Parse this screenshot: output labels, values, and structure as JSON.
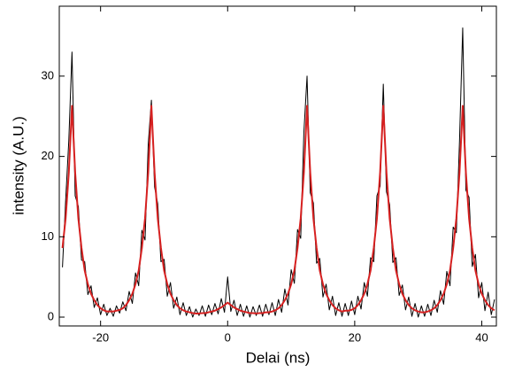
{
  "chart_data": {
    "type": "line",
    "x_label": "Delai (ns)",
    "y_label": "intensity (A.U.)",
    "xlim": [
      -26.5,
      42.3
    ],
    "ylim": [
      -1.1,
      38.7
    ],
    "xticks": [
      -20,
      0,
      20,
      40
    ],
    "yticks": [
      0,
      10,
      20,
      30
    ],
    "x": [
      -26,
      -25.5,
      -25,
      -24.5,
      -24,
      -23.5,
      -23,
      -22.5,
      -22,
      -21.5,
      -21,
      -20.5,
      -20,
      -19.5,
      -19,
      -18.5,
      -18,
      -17.5,
      -17,
      -16.5,
      -16,
      -15.5,
      -15,
      -14.5,
      -14,
      -13.5,
      -13,
      -12.5,
      -12,
      -11.5,
      -11,
      -10.5,
      -10,
      -9.5,
      -9,
      -8.5,
      -8,
      -7.5,
      -7,
      -6.5,
      -6,
      -5.5,
      -5,
      -4.5,
      -4,
      -3.5,
      -3,
      -2.5,
      -2,
      -1.5,
      -1,
      -0.5,
      0,
      0.5,
      1,
      1.5,
      2,
      2.5,
      3,
      3.5,
      4,
      4.5,
      5,
      5.5,
      6,
      6.5,
      7,
      7.5,
      8,
      8.5,
      9,
      9.5,
      10,
      10.5,
      11,
      11.5,
      12,
      12.5,
      13,
      13.5,
      14,
      14.5,
      15,
      15.5,
      16,
      16.5,
      17,
      17.5,
      18,
      18.5,
      19,
      19.5,
      20,
      20.5,
      21,
      21.5,
      22,
      22.5,
      23,
      23.5,
      24,
      24.5,
      25,
      25.5,
      26,
      26.5,
      27,
      27.5,
      28,
      28.5,
      29,
      29.5,
      30,
      30.5,
      31,
      31.5,
      32,
      32.5,
      33,
      33.5,
      34,
      34.5,
      35,
      35.5,
      36,
      36.5,
      37,
      37.5,
      38,
      38.5,
      39,
      39.5,
      40,
      40.5,
      41,
      41.5,
      42
    ],
    "series": [
      {
        "color": "#000000",
        "width": 1,
        "values": [
          6.2,
          14.5,
          22,
          33,
          15.1,
          13.8,
          7.1,
          6.9,
          2.8,
          3.9,
          1.2,
          2.4,
          0.3,
          1.6,
          0.2,
          1.1,
          0.1,
          1.4,
          0.5,
          1.9,
          0.8,
          3.2,
          1.7,
          5.5,
          3.9,
          10.8,
          9.6,
          21.5,
          27,
          16.2,
          14.1,
          6.9,
          7.2,
          2.6,
          4.3,
          1.1,
          2.5,
          0.3,
          1.8,
          0.2,
          1.3,
          0,
          1.0,
          0.2,
          1.4,
          0.1,
          1.5,
          0.3,
          1.7,
          0.4,
          2.3,
          0.6,
          5,
          0.7,
          2.1,
          0.2,
          1.6,
          0.1,
          1.4,
          0,
          1.3,
          0.2,
          1.5,
          0.1,
          1.6,
          0.3,
          1.8,
          0.2,
          2.2,
          0.6,
          3.5,
          1.5,
          5.9,
          4.2,
          10.9,
          9.8,
          23,
          30,
          15.5,
          14.2,
          6.7,
          7.3,
          2.5,
          4.1,
          0.9,
          2.6,
          0.2,
          1.8,
          0.1,
          1.7,
          0.2,
          2.0,
          0.3,
          2.6,
          1.0,
          4.3,
          2.6,
          7.4,
          6.9,
          15.1,
          16.3,
          29,
          15.6,
          14.0,
          6.8,
          7.4,
          2.7,
          4.0,
          0.9,
          2.5,
          0.1,
          1.7,
          0,
          1.4,
          0.1,
          1.6,
          0.2,
          2.1,
          0.6,
          3.3,
          1.6,
          5.7,
          3.9,
          11.2,
          10.5,
          22,
          36,
          15.8,
          14.9,
          6.3,
          7.8,
          2.4,
          4.3,
          0.8,
          3.1,
          0.3,
          2.2
        ]
      },
      {
        "color": "#d62020",
        "width": 2,
        "values": [
          8.6,
          12.3,
          18,
          26.3,
          18,
          12.3,
          8.6,
          5.8,
          4.1,
          2.9,
          2.1,
          1.5,
          1.1,
          0.85,
          0.7,
          0.7,
          0.7,
          0.8,
          0.9,
          1.1,
          1.5,
          2.1,
          2.9,
          4.1,
          5.8,
          8.6,
          12.3,
          18,
          26.3,
          18,
          12.3,
          8.6,
          5.8,
          4.1,
          2.9,
          2.1,
          1.5,
          1.1,
          0.85,
          0.7,
          0.6,
          0.5,
          0.45,
          0.45,
          0.5,
          0.5,
          0.6,
          0.7,
          0.8,
          1.0,
          1.2,
          1.5,
          1.8,
          1.5,
          1.2,
          1.0,
          0.8,
          0.7,
          0.6,
          0.5,
          0.5,
          0.45,
          0.5,
          0.5,
          0.6,
          0.6,
          0.7,
          0.85,
          1.1,
          1.5,
          2.1,
          2.9,
          4.1,
          5.8,
          8.6,
          12.3,
          18,
          26.3,
          18,
          12.3,
          8.6,
          5.8,
          4.1,
          2.9,
          2.1,
          1.5,
          1.1,
          0.85,
          0.7,
          0.8,
          0.8,
          0.9,
          1.1,
          1.5,
          2.1,
          2.9,
          4.1,
          5.8,
          8.6,
          12.3,
          18,
          26.3,
          18,
          12.3,
          8.6,
          5.8,
          4.1,
          2.9,
          2.1,
          1.5,
          1.1,
          0.85,
          0.7,
          0.6,
          0.6,
          0.7,
          0.85,
          1.1,
          1.5,
          2.1,
          2.9,
          4.1,
          5.8,
          8.6,
          12.3,
          18,
          26.3,
          18,
          12.3,
          8.6,
          5.8,
          4.1,
          2.9,
          2.1,
          1.5,
          1.1,
          0.85
        ]
      }
    ]
  }
}
